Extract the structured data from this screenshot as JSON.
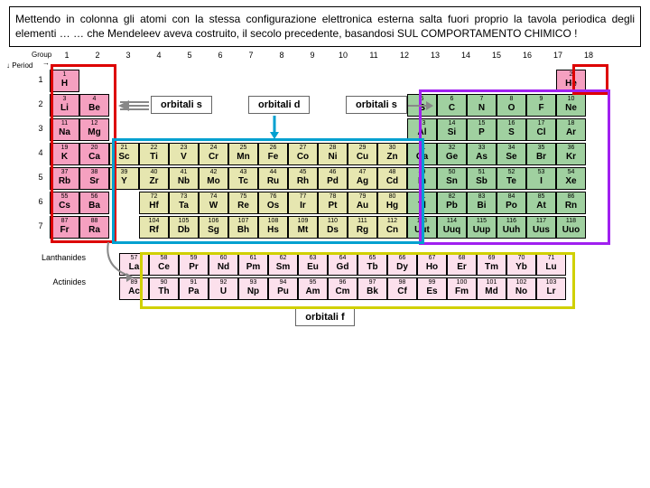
{
  "description": "Mettendo in colonna gli atomi con la stessa configurazione elettronica esterna salta fuori proprio la tavola periodica degli elementi … … che Mendeleev aveva costruito, il secolo precedente, basandosi SUL COMPORTAMENTO CHIMICO !",
  "group_label": "Group →",
  "period_label": "↓ Period",
  "orbital_labels": {
    "s": "orbitali s",
    "d": "orbitali d",
    "s2": "orbitali s",
    "f": "orbitali f"
  },
  "series": {
    "lanth": "Lanthanides",
    "act": "Actinides"
  },
  "groups": [
    1,
    2,
    3,
    4,
    5,
    6,
    7,
    8,
    9,
    10,
    11,
    12,
    13,
    14,
    15,
    16,
    17,
    18
  ],
  "periods": [
    1,
    2,
    3,
    4,
    5,
    6,
    7
  ],
  "colors": {
    "s": "#f5a0c0",
    "p": "#a0d0a0",
    "d": "#e6e6b0",
    "f": "#fce0ec",
    "outline_s": "#d00",
    "outline_p": "#a020f0",
    "outline_d": "#00a0d0",
    "outline_f": "#d0d000"
  },
  "elements": [
    [
      {
        "n": 1,
        "s": "H",
        "b": "s"
      },
      null,
      null,
      null,
      null,
      null,
      null,
      null,
      null,
      null,
      null,
      null,
      null,
      null,
      null,
      null,
      null,
      {
        "n": 2,
        "s": "He",
        "b": "s"
      }
    ],
    [
      {
        "n": 3,
        "s": "Li",
        "b": "s"
      },
      {
        "n": 4,
        "s": "Be",
        "b": "s"
      },
      null,
      null,
      null,
      null,
      null,
      null,
      null,
      null,
      null,
      null,
      {
        "n": 5,
        "s": "B",
        "b": "p"
      },
      {
        "n": 6,
        "s": "C",
        "b": "p"
      },
      {
        "n": 7,
        "s": "N",
        "b": "p"
      },
      {
        "n": 8,
        "s": "O",
        "b": "p"
      },
      {
        "n": 9,
        "s": "F",
        "b": "p"
      },
      {
        "n": 10,
        "s": "Ne",
        "b": "p"
      }
    ],
    [
      {
        "n": 11,
        "s": "Na",
        "b": "s"
      },
      {
        "n": 12,
        "s": "Mg",
        "b": "s"
      },
      null,
      null,
      null,
      null,
      null,
      null,
      null,
      null,
      null,
      null,
      {
        "n": 13,
        "s": "Al",
        "b": "p"
      },
      {
        "n": 14,
        "s": "Si",
        "b": "p"
      },
      {
        "n": 15,
        "s": "P",
        "b": "p"
      },
      {
        "n": 16,
        "s": "S",
        "b": "p"
      },
      {
        "n": 17,
        "s": "Cl",
        "b": "p"
      },
      {
        "n": 18,
        "s": "Ar",
        "b": "p"
      }
    ],
    [
      {
        "n": 19,
        "s": "K",
        "b": "s"
      },
      {
        "n": 20,
        "s": "Ca",
        "b": "s"
      },
      {
        "n": 21,
        "s": "Sc",
        "b": "d"
      },
      {
        "n": 22,
        "s": "Ti",
        "b": "d"
      },
      {
        "n": 23,
        "s": "V",
        "b": "d"
      },
      {
        "n": 24,
        "s": "Cr",
        "b": "d"
      },
      {
        "n": 25,
        "s": "Mn",
        "b": "d"
      },
      {
        "n": 26,
        "s": "Fe",
        "b": "d"
      },
      {
        "n": 27,
        "s": "Co",
        "b": "d"
      },
      {
        "n": 28,
        "s": "Ni",
        "b": "d"
      },
      {
        "n": 29,
        "s": "Cu",
        "b": "d"
      },
      {
        "n": 30,
        "s": "Zn",
        "b": "d"
      },
      {
        "n": 31,
        "s": "Ga",
        "b": "p"
      },
      {
        "n": 32,
        "s": "Ge",
        "b": "p"
      },
      {
        "n": 33,
        "s": "As",
        "b": "p"
      },
      {
        "n": 34,
        "s": "Se",
        "b": "p"
      },
      {
        "n": 35,
        "s": "Br",
        "b": "p"
      },
      {
        "n": 36,
        "s": "Kr",
        "b": "p"
      }
    ],
    [
      {
        "n": 37,
        "s": "Rb",
        "b": "s"
      },
      {
        "n": 38,
        "s": "Sr",
        "b": "s"
      },
      {
        "n": 39,
        "s": "Y",
        "b": "d"
      },
      {
        "n": 40,
        "s": "Zr",
        "b": "d"
      },
      {
        "n": 41,
        "s": "Nb",
        "b": "d"
      },
      {
        "n": 42,
        "s": "Mo",
        "b": "d"
      },
      {
        "n": 43,
        "s": "Tc",
        "b": "d"
      },
      {
        "n": 44,
        "s": "Ru",
        "b": "d"
      },
      {
        "n": 45,
        "s": "Rh",
        "b": "d"
      },
      {
        "n": 46,
        "s": "Pd",
        "b": "d"
      },
      {
        "n": 47,
        "s": "Ag",
        "b": "d"
      },
      {
        "n": 48,
        "s": "Cd",
        "b": "d"
      },
      {
        "n": 49,
        "s": "In",
        "b": "p"
      },
      {
        "n": 50,
        "s": "Sn",
        "b": "p"
      },
      {
        "n": 51,
        "s": "Sb",
        "b": "p"
      },
      {
        "n": 52,
        "s": "Te",
        "b": "p"
      },
      {
        "n": 53,
        "s": "I",
        "b": "p"
      },
      {
        "n": 54,
        "s": "Xe",
        "b": "p"
      }
    ],
    [
      {
        "n": 55,
        "s": "Cs",
        "b": "s"
      },
      {
        "n": 56,
        "s": "Ba",
        "b": "s"
      },
      null,
      {
        "n": 72,
        "s": "Hf",
        "b": "d"
      },
      {
        "n": 73,
        "s": "Ta",
        "b": "d"
      },
      {
        "n": 74,
        "s": "W",
        "b": "d"
      },
      {
        "n": 75,
        "s": "Re",
        "b": "d"
      },
      {
        "n": 76,
        "s": "Os",
        "b": "d"
      },
      {
        "n": 77,
        "s": "Ir",
        "b": "d"
      },
      {
        "n": 78,
        "s": "Pt",
        "b": "d"
      },
      {
        "n": 79,
        "s": "Au",
        "b": "d"
      },
      {
        "n": 80,
        "s": "Hg",
        "b": "d"
      },
      {
        "n": 81,
        "s": "Tl",
        "b": "p"
      },
      {
        "n": 82,
        "s": "Pb",
        "b": "p"
      },
      {
        "n": 83,
        "s": "Bi",
        "b": "p"
      },
      {
        "n": 84,
        "s": "Po",
        "b": "p"
      },
      {
        "n": 85,
        "s": "At",
        "b": "p"
      },
      {
        "n": 86,
        "s": "Rn",
        "b": "p"
      }
    ],
    [
      {
        "n": 87,
        "s": "Fr",
        "b": "s"
      },
      {
        "n": 88,
        "s": "Ra",
        "b": "s"
      },
      null,
      {
        "n": 104,
        "s": "Rf",
        "b": "d"
      },
      {
        "n": 105,
        "s": "Db",
        "b": "d"
      },
      {
        "n": 106,
        "s": "Sg",
        "b": "d"
      },
      {
        "n": 107,
        "s": "Bh",
        "b": "d"
      },
      {
        "n": 108,
        "s": "Hs",
        "b": "d"
      },
      {
        "n": 109,
        "s": "Mt",
        "b": "d"
      },
      {
        "n": 110,
        "s": "Ds",
        "b": "d"
      },
      {
        "n": 111,
        "s": "Rg",
        "b": "d"
      },
      {
        "n": 112,
        "s": "Cn",
        "b": "d"
      },
      {
        "n": 113,
        "s": "Uut",
        "b": "p"
      },
      {
        "n": 114,
        "s": "Uuq",
        "b": "p"
      },
      {
        "n": 115,
        "s": "Uup",
        "b": "p"
      },
      {
        "n": 116,
        "s": "Uuh",
        "b": "p"
      },
      {
        "n": 117,
        "s": "Uus",
        "b": "p"
      },
      {
        "n": 118,
        "s": "Uuo",
        "b": "p"
      }
    ]
  ],
  "lanthanides": [
    {
      "n": 57,
      "s": "La"
    },
    {
      "n": 58,
      "s": "Ce"
    },
    {
      "n": 59,
      "s": "Pr"
    },
    {
      "n": 60,
      "s": "Nd"
    },
    {
      "n": 61,
      "s": "Pm"
    },
    {
      "n": 62,
      "s": "Sm"
    },
    {
      "n": 63,
      "s": "Eu"
    },
    {
      "n": 64,
      "s": "Gd"
    },
    {
      "n": 65,
      "s": "Tb"
    },
    {
      "n": 66,
      "s": "Dy"
    },
    {
      "n": 67,
      "s": "Ho"
    },
    {
      "n": 68,
      "s": "Er"
    },
    {
      "n": 69,
      "s": "Tm"
    },
    {
      "n": 70,
      "s": "Yb"
    },
    {
      "n": 71,
      "s": "Lu"
    }
  ],
  "actinides": [
    {
      "n": 89,
      "s": "Ac"
    },
    {
      "n": 90,
      "s": "Th"
    },
    {
      "n": 91,
      "s": "Pa"
    },
    {
      "n": 92,
      "s": "U"
    },
    {
      "n": 93,
      "s": "Np"
    },
    {
      "n": 94,
      "s": "Pu"
    },
    {
      "n": 95,
      "s": "Am"
    },
    {
      "n": 96,
      "s": "Cm"
    },
    {
      "n": 97,
      "s": "Bk"
    },
    {
      "n": 98,
      "s": "Cf"
    },
    {
      "n": 99,
      "s": "Es"
    },
    {
      "n": 100,
      "s": "Fm"
    },
    {
      "n": 101,
      "s": "Md"
    },
    {
      "n": 102,
      "s": "No"
    },
    {
      "n": 103,
      "s": "Lr"
    }
  ]
}
